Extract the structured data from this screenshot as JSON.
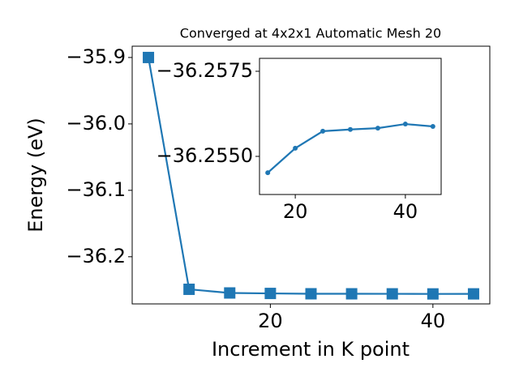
{
  "chart_data": [
    {
      "type": "line",
      "title": "Converged at 4x2x1 Automatic Mesh 20",
      "xlabel": "Increment in K point",
      "ylabel": "Energy (eV)",
      "x": [
        5,
        10,
        15,
        20,
        25,
        30,
        35,
        40,
        45
      ],
      "values": [
        -35.9,
        -36.249,
        -36.25452,
        -36.25524,
        -36.25574,
        -36.25579,
        -36.25583,
        -36.25595,
        -36.25588
      ],
      "color": "#1f77b4",
      "marker": "square",
      "xlim": [
        3,
        47
      ],
      "ylim": [
        -36.271,
        -35.883
      ],
      "xticks": [
        20,
        40
      ],
      "yticks": [
        {
          "value": -35.9,
          "label": "−35.9"
        },
        {
          "value": -36.0,
          "label": "−36.0"
        },
        {
          "value": -36.1,
          "label": "−36.1"
        },
        {
          "value": -36.2,
          "label": "−36.2"
        }
      ]
    },
    {
      "type": "line",
      "x": [
        15,
        20,
        25,
        30,
        35,
        40,
        45
      ],
      "values": [
        -36.25452,
        -36.25524,
        -36.25574,
        -36.25579,
        -36.25583,
        -36.25595,
        -36.25588
      ],
      "color": "#1f77b4",
      "marker": "circle",
      "xlim": [
        13.5,
        46.5
      ],
      "ylim": [
        -36.25388,
        -36.25788
      ],
      "xticks": [
        20,
        40
      ],
      "yticks": [
        {
          "value": -36.2575,
          "label": "−36.2575"
        },
        {
          "value": -36.255,
          "label": "−36.2550"
        }
      ]
    }
  ]
}
